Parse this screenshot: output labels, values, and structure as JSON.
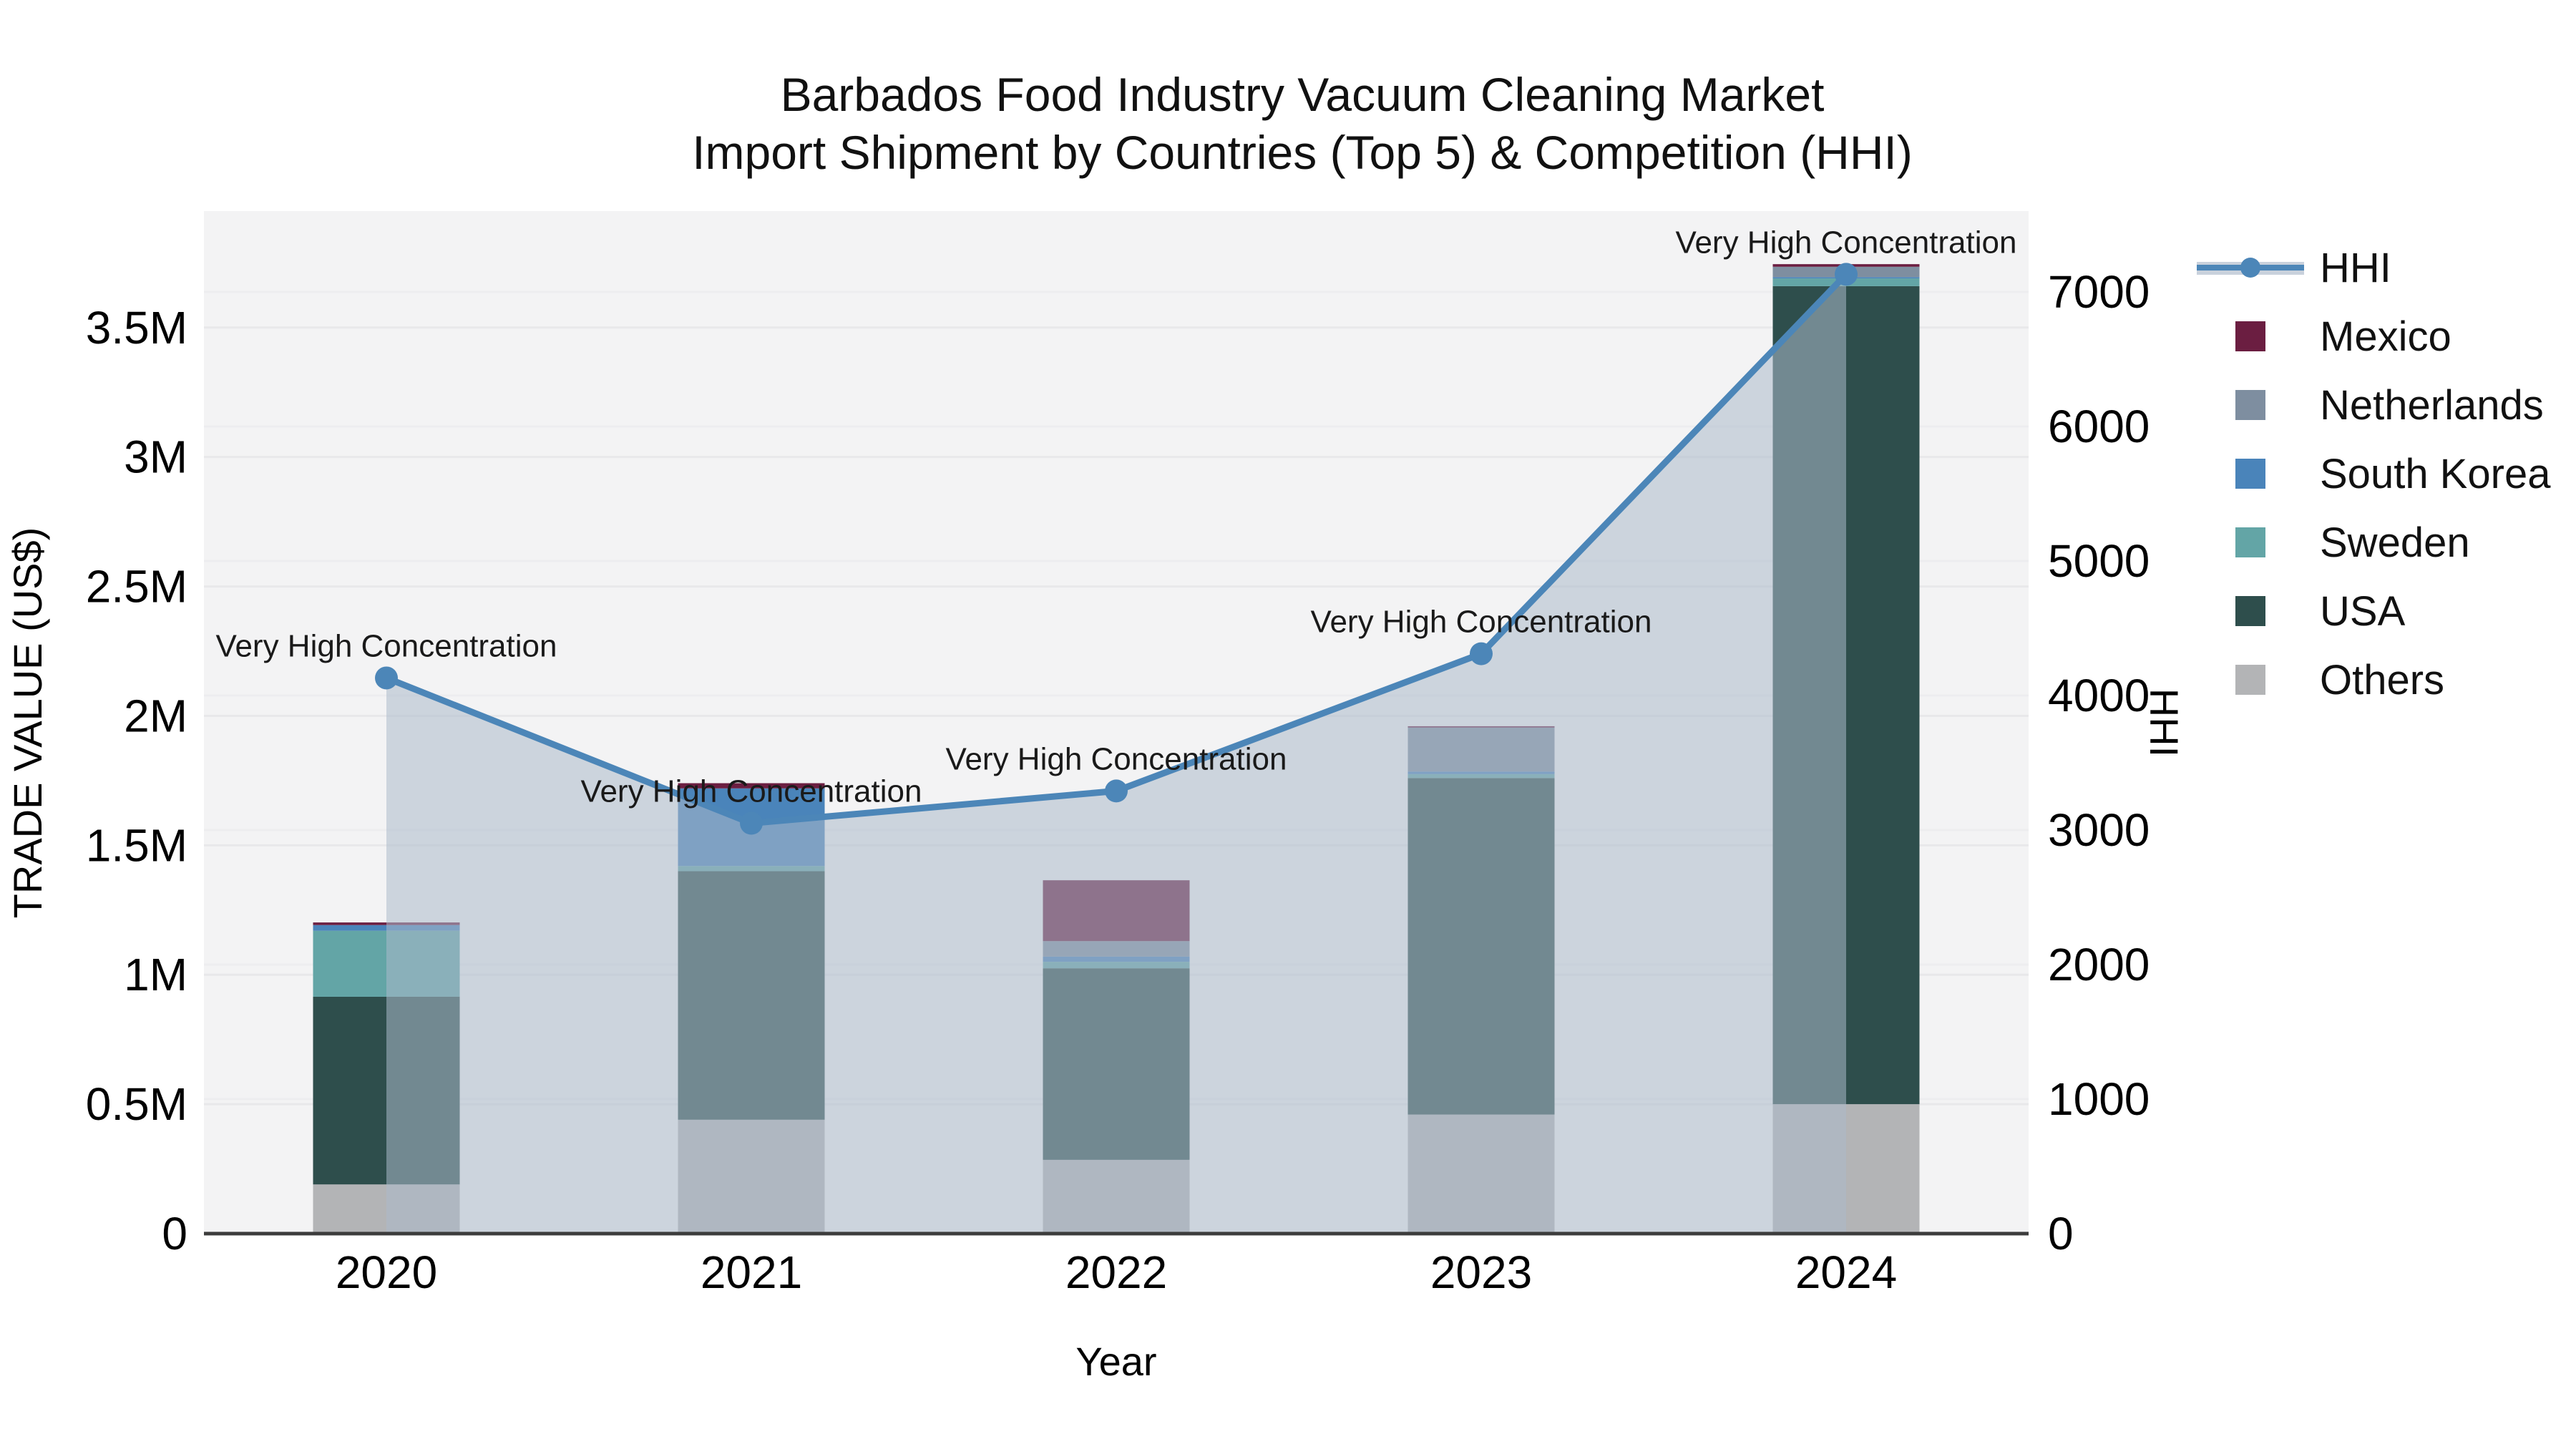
{
  "title": {
    "line1": "Barbados Food Industry Vacuum Cleaning Market",
    "line2": "Import Shipment by Countries (Top 5) & Competition (HHI)"
  },
  "axes": {
    "x_label": "Year",
    "y_left_label": "TRADE VALUE (US$)",
    "y_right_label": "HHI",
    "y_left_tick_labels": [
      "0",
      "0.5M",
      "1M",
      "1.5M",
      "2M",
      "2.5M",
      "3M",
      "3.5M"
    ],
    "y_right_tick_labels": [
      "0",
      "1000",
      "2000",
      "3000",
      "4000",
      "5000",
      "6000",
      "7000"
    ],
    "x_tick_labels": [
      "2020",
      "2021",
      "2022",
      "2023",
      "2024"
    ]
  },
  "legend": {
    "items": [
      {
        "label": "HHI",
        "type": "line",
        "color": "#4c86b8"
      },
      {
        "label": "Mexico",
        "type": "square",
        "color": "#6b1e41"
      },
      {
        "label": "Netherlands",
        "type": "square",
        "color": "#7e8ea0"
      },
      {
        "label": "South Korea",
        "type": "square",
        "color": "#4a84ba"
      },
      {
        "label": "Sweden",
        "type": "square",
        "color": "#63a5a6"
      },
      {
        "label": "USA",
        "type": "square",
        "color": "#2e4e4c"
      },
      {
        "label": "Others",
        "type": "square",
        "color": "#b3b4b6"
      }
    ]
  },
  "annotations": [
    {
      "year": "2020",
      "text": "Very High Concentration"
    },
    {
      "year": "2021",
      "text": "Very High Concentration"
    },
    {
      "year": "2022",
      "text": "Very High Concentration"
    },
    {
      "year": "2023",
      "text": "Very High Concentration"
    },
    {
      "year": "2024",
      "text": "Very High Concentration"
    }
  ],
  "chart_data": {
    "type": "bar+line",
    "categories": [
      "2020",
      "2021",
      "2022",
      "2023",
      "2024"
    ],
    "stack_order_bottom_to_top": [
      "Others",
      "USA",
      "Sweden",
      "South Korea",
      "Netherlands",
      "Mexico"
    ],
    "series": [
      {
        "name": "Mexico",
        "values": [
          10000,
          20000,
          235000,
          5000,
          10000
        ]
      },
      {
        "name": "Netherlands",
        "values": [
          0,
          0,
          60000,
          170000,
          40000
        ]
      },
      {
        "name": "South Korea",
        "values": [
          22000,
          300000,
          20000,
          10000,
          5000
        ]
      },
      {
        "name": "Sweden",
        "values": [
          255000,
          20000,
          25000,
          15000,
          30000
        ]
      },
      {
        "name": "USA",
        "values": [
          725000,
          960000,
          740000,
          1300000,
          3160000
        ]
      },
      {
        "name": "Others",
        "values": [
          190000,
          440000,
          285000,
          460000,
          500000
        ]
      }
    ],
    "line_series": {
      "name": "HHI",
      "axis": "right",
      "values": [
        4130,
        3050,
        3290,
        4310,
        7130
      ]
    },
    "title": "Barbados Food Industry Vacuum Cleaning Market — Import Shipment by Countries (Top 5) & Competition (HHI)",
    "xlabel": "Year",
    "ylabel_left": "TRADE VALUE (US$)",
    "ylabel_right": "HHI",
    "y_left_range": [
      0,
      3950000
    ],
    "y_right_range": [
      0,
      7600
    ],
    "grid": true,
    "legend_position": "right"
  },
  "colors": {
    "hhi_line": "#4c86b8",
    "hhi_area_fill": "rgba(172,185,202,0.55)",
    "mexico": "#6b1e41",
    "netherlands": "#7e8ea0",
    "south_korea": "#4a84ba",
    "sweden": "#63a5a6",
    "usa": "#2e4e4c",
    "others": "#b3b4b6",
    "plot_background": "#f3f3f4",
    "gridline": "#e8e8ea",
    "axis_line": "#3c3c3c"
  }
}
